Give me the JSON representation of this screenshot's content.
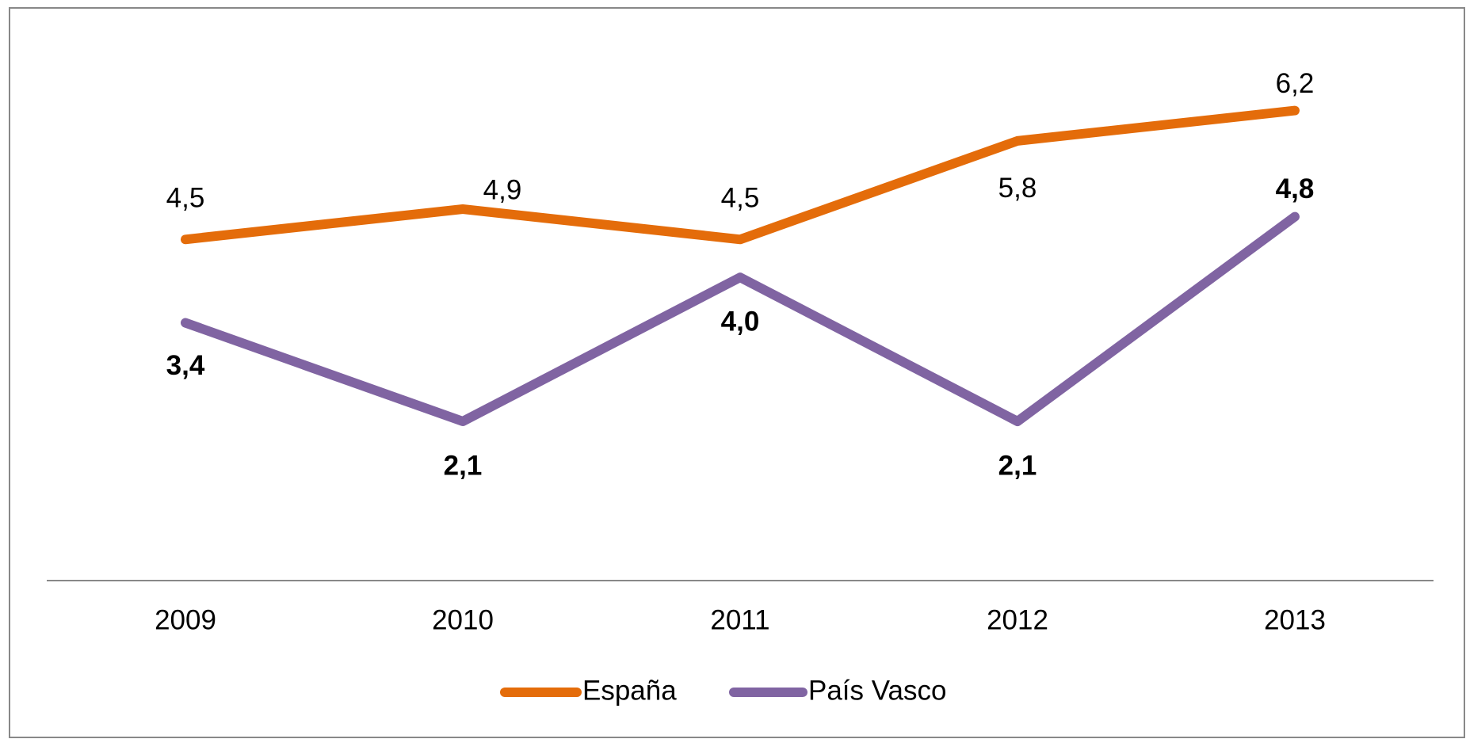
{
  "chart_data": {
    "type": "line",
    "categories": [
      "2009",
      "2010",
      "2011",
      "2012",
      "2013"
    ],
    "series": [
      {
        "name": "España",
        "color": "#e46c0a",
        "values": [
          4.5,
          4.9,
          4.5,
          5.8,
          6.2
        ],
        "value_labels": [
          "4,5",
          "4,9",
          "4,5",
          "5,8",
          "6,2"
        ]
      },
      {
        "name": "País Vasco",
        "color": "#8064a2",
        "values": [
          3.4,
          2.1,
          4.0,
          2.1,
          4.8
        ],
        "value_labels": [
          "3,4",
          "2,1",
          "4,0",
          "2,1",
          "4,8"
        ]
      }
    ],
    "ylim": [
      0,
      7
    ]
  }
}
